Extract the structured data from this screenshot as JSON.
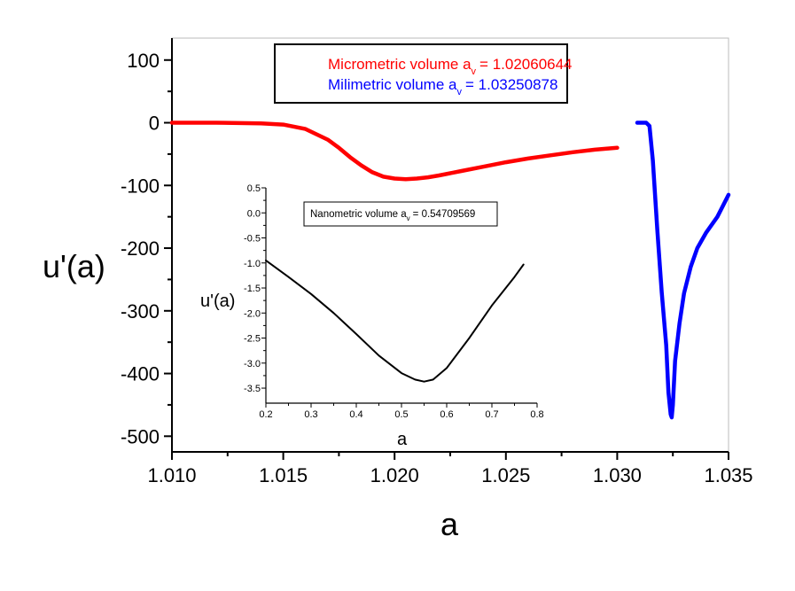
{
  "chart_data": [
    {
      "type": "line",
      "xlabel": "a",
      "ylabel": "u'(a)",
      "xlim": [
        1.01,
        1.035
      ],
      "ylim": [
        -525,
        135
      ],
      "x_ticks": [
        "1.010",
        "1.015",
        "1.020",
        "1.025",
        "1.030",
        "1.035"
      ],
      "y_ticks": [
        "100",
        "0",
        "-100",
        "-200",
        "-300",
        "-400",
        "-500"
      ],
      "legend_placement": "top-center",
      "series": [
        {
          "legend": "Micrometric volume a",
          "legend_sub": "v",
          "legend_value": "= 1.02060644",
          "color": "#ff0000",
          "x": [
            1.01,
            1.012,
            1.014,
            1.015,
            1.016,
            1.017,
            1.0175,
            1.018,
            1.0185,
            1.019,
            1.0195,
            1.02,
            1.0205,
            1.021,
            1.0215,
            1.022,
            1.023,
            1.024,
            1.025,
            1.026,
            1.027,
            1.028,
            1.029,
            1.03
          ],
          "y": [
            0,
            0,
            -1,
            -3,
            -10,
            -27,
            -40,
            -55,
            -68,
            -79,
            -86,
            -89,
            -90,
            -89,
            -87,
            -84,
            -77,
            -70,
            -63,
            -57,
            -52,
            -47,
            -43,
            -40
          ]
        },
        {
          "legend": "Milimetric volume a",
          "legend_sub": "v",
          "legend_value": "= 1.03250878",
          "color": "#0000ff",
          "x": [
            1.0309,
            1.0313,
            1.03145,
            1.0316,
            1.0318,
            1.032,
            1.0322,
            1.0323,
            1.0324,
            1.03245,
            1.0325,
            1.0326,
            1.0328,
            1.033,
            1.0333,
            1.0336,
            1.034,
            1.0345,
            1.035
          ],
          "y": [
            0,
            0,
            -5,
            -60,
            -170,
            -270,
            -355,
            -430,
            -465,
            -470,
            -450,
            -380,
            -320,
            -272,
            -230,
            -200,
            -175,
            -150,
            -115
          ]
        }
      ]
    },
    {
      "type": "line",
      "xlabel": "a",
      "ylabel": "u'(a)",
      "xlim": [
        0.2,
        0.8
      ],
      "ylim": [
        -3.8,
        0.5
      ],
      "x_ticks": [
        "0.2",
        "0.3",
        "0.4",
        "0.5",
        "0.6",
        "0.7",
        "0.8"
      ],
      "y_ticks": [
        "0.5",
        "0.0",
        "-0.5",
        "-1.0",
        "-1.5",
        "-2.0",
        "-2.5",
        "-3.0",
        "-3.5"
      ],
      "legend_placement": "top-center",
      "series": [
        {
          "legend": "Nanometric volume a",
          "legend_sub": "v",
          "legend_value": "= 0.54709569",
          "color": "#000000",
          "x": [
            0.2,
            0.25,
            0.3,
            0.35,
            0.4,
            0.45,
            0.5,
            0.53,
            0.55,
            0.57,
            0.6,
            0.65,
            0.7,
            0.75,
            0.77
          ],
          "y": [
            -0.95,
            -1.28,
            -1.62,
            -2.0,
            -2.42,
            -2.85,
            -3.2,
            -3.33,
            -3.37,
            -3.33,
            -3.1,
            -2.5,
            -1.85,
            -1.28,
            -1.03
          ]
        }
      ]
    }
  ]
}
